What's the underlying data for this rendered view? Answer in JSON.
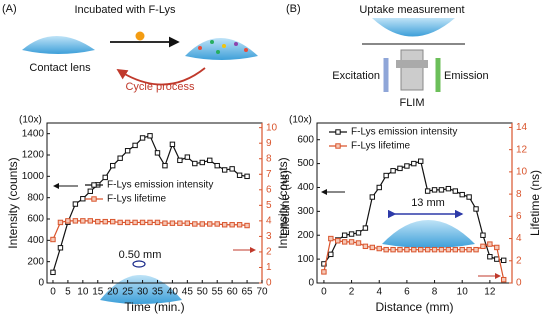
{
  "chart_data": [
    {
      "type": "line",
      "label": "(A)",
      "annotations": [
        "Incubated with F-Lys",
        "Contact lens",
        "Cycle process",
        "0.50 mm"
      ],
      "x_label": "Time (min.)",
      "y_label": "Intensity (counts)",
      "y2_label": "Lifetime (ns)",
      "y_multiplier": "(10x)",
      "xlim": [
        -2,
        70
      ],
      "xticks": [
        0,
        5,
        10,
        15,
        20,
        25,
        30,
        35,
        40,
        45,
        50,
        55,
        60,
        65,
        70
      ],
      "ylim": [
        0,
        1500
      ],
      "yticks": [
        0,
        200,
        400,
        600,
        800,
        1000,
        1200,
        1400
      ],
      "y2lim": [
        0,
        10.3
      ],
      "y2ticks": [
        0,
        1,
        2,
        3,
        4,
        5,
        6,
        7,
        8,
        9,
        10
      ],
      "legend": "center left",
      "x": [
        0,
        2.5,
        5,
        7.5,
        10,
        12.5,
        15,
        17.5,
        20,
        22.5,
        25,
        27.5,
        30,
        32.5,
        35,
        37.5,
        40,
        42.5,
        45,
        47.5,
        50,
        52.5,
        55,
        57.5,
        60,
        62.5,
        65
      ],
      "series": [
        {
          "name": "F-Lys emission intensity",
          "color": "#111111",
          "values": [
            100,
            330,
            570,
            740,
            790,
            860,
            920,
            990,
            1100,
            1170,
            1240,
            1290,
            1360,
            1380,
            1220,
            1100,
            1300,
            1150,
            1180,
            1120,
            1130,
            1150,
            1100,
            1060,
            1070,
            1010,
            1000
          ]
        },
        {
          "name": "F-Lys lifetime",
          "color": "#d9542c",
          "axis": "y2",
          "values": [
            2.8,
            3.9,
            4.0,
            4.0,
            4.0,
            4.0,
            3.95,
            3.95,
            3.95,
            3.9,
            3.9,
            3.9,
            3.9,
            3.9,
            3.9,
            3.85,
            3.85,
            3.85,
            3.85,
            3.8,
            3.8,
            3.8,
            3.8,
            3.75,
            3.75,
            3.75,
            3.7
          ]
        }
      ]
    },
    {
      "type": "line",
      "label": "(B)",
      "annotations": [
        "Uptake measurement",
        "Excitation",
        "Emission",
        "FLIM",
        "13 mm"
      ],
      "x_label": "Distance (mm)",
      "y_label": "Intensity (counts)",
      "y2_label": "Lifetime (ns)",
      "y_multiplier": "(10x)",
      "xlim": [
        -0.5,
        13.6
      ],
      "xticks": [
        0,
        2,
        4,
        6,
        8,
        10,
        12
      ],
      "ylim": [
        0,
        670
      ],
      "yticks": [
        0,
        100,
        200,
        300,
        400,
        500,
        600
      ],
      "y2lim": [
        0,
        14.4
      ],
      "y2ticks": [
        0,
        2,
        4,
        6,
        8,
        10,
        12,
        14
      ],
      "legend": "upper left",
      "x": [
        0,
        0.5,
        1,
        1.5,
        2,
        2.5,
        3,
        3.5,
        4,
        4.5,
        5,
        5.5,
        6,
        6.5,
        7,
        7.5,
        8,
        8.5,
        9,
        9.5,
        10,
        10.5,
        11,
        11.5,
        12,
        12.5,
        13
      ],
      "series": [
        {
          "name": "F-Lys emission intensity",
          "color": "#111111",
          "values": [
            80,
            120,
            180,
            200,
            205,
            210,
            230,
            360,
            400,
            450,
            470,
            480,
            490,
            500,
            510,
            385,
            390,
            390,
            395,
            385,
            370,
            360,
            310,
            200,
            110,
            100,
            95
          ]
        },
        {
          "name": "F-Lys lifetime",
          "color": "#d9542c",
          "axis": "y2",
          "values": [
            1.0,
            4.0,
            3.8,
            3.7,
            3.7,
            3.6,
            3.3,
            3.2,
            3.1,
            3.0,
            3.0,
            3.0,
            3.0,
            3.0,
            3.0,
            3.0,
            3.0,
            3.0,
            3.0,
            3.0,
            3.0,
            3.0,
            3.0,
            3.3,
            3.5,
            3.2,
            0.3
          ]
        }
      ]
    }
  ]
}
